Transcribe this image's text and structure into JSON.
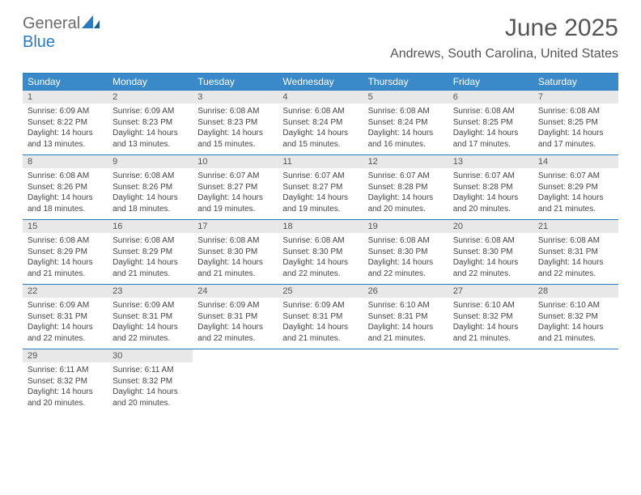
{
  "logo": {
    "text1": "General",
    "text2": "Blue"
  },
  "title": "June 2025",
  "location": "Andrews, South Carolina, United States",
  "colors": {
    "header_bg": "#3a8ac9",
    "border": "#2a7ac0",
    "daynum_bg": "#e8e8e8",
    "text_muted": "#555555",
    "body_text": "#444444"
  },
  "day_names": [
    "Sunday",
    "Monday",
    "Tuesday",
    "Wednesday",
    "Thursday",
    "Friday",
    "Saturday"
  ],
  "weeks": [
    [
      {
        "n": "1",
        "sr": "6:09 AM",
        "ss": "8:22 PM",
        "dl": "14 hours and 13 minutes."
      },
      {
        "n": "2",
        "sr": "6:09 AM",
        "ss": "8:23 PM",
        "dl": "14 hours and 13 minutes."
      },
      {
        "n": "3",
        "sr": "6:08 AM",
        "ss": "8:23 PM",
        "dl": "14 hours and 15 minutes."
      },
      {
        "n": "4",
        "sr": "6:08 AM",
        "ss": "8:24 PM",
        "dl": "14 hours and 15 minutes."
      },
      {
        "n": "5",
        "sr": "6:08 AM",
        "ss": "8:24 PM",
        "dl": "14 hours and 16 minutes."
      },
      {
        "n": "6",
        "sr": "6:08 AM",
        "ss": "8:25 PM",
        "dl": "14 hours and 17 minutes."
      },
      {
        "n": "7",
        "sr": "6:08 AM",
        "ss": "8:25 PM",
        "dl": "14 hours and 17 minutes."
      }
    ],
    [
      {
        "n": "8",
        "sr": "6:08 AM",
        "ss": "8:26 PM",
        "dl": "14 hours and 18 minutes."
      },
      {
        "n": "9",
        "sr": "6:08 AM",
        "ss": "8:26 PM",
        "dl": "14 hours and 18 minutes."
      },
      {
        "n": "10",
        "sr": "6:07 AM",
        "ss": "8:27 PM",
        "dl": "14 hours and 19 minutes."
      },
      {
        "n": "11",
        "sr": "6:07 AM",
        "ss": "8:27 PM",
        "dl": "14 hours and 19 minutes."
      },
      {
        "n": "12",
        "sr": "6:07 AM",
        "ss": "8:28 PM",
        "dl": "14 hours and 20 minutes."
      },
      {
        "n": "13",
        "sr": "6:07 AM",
        "ss": "8:28 PM",
        "dl": "14 hours and 20 minutes."
      },
      {
        "n": "14",
        "sr": "6:07 AM",
        "ss": "8:29 PM",
        "dl": "14 hours and 21 minutes."
      }
    ],
    [
      {
        "n": "15",
        "sr": "6:08 AM",
        "ss": "8:29 PM",
        "dl": "14 hours and 21 minutes."
      },
      {
        "n": "16",
        "sr": "6:08 AM",
        "ss": "8:29 PM",
        "dl": "14 hours and 21 minutes."
      },
      {
        "n": "17",
        "sr": "6:08 AM",
        "ss": "8:30 PM",
        "dl": "14 hours and 21 minutes."
      },
      {
        "n": "18",
        "sr": "6:08 AM",
        "ss": "8:30 PM",
        "dl": "14 hours and 22 minutes."
      },
      {
        "n": "19",
        "sr": "6:08 AM",
        "ss": "8:30 PM",
        "dl": "14 hours and 22 minutes."
      },
      {
        "n": "20",
        "sr": "6:08 AM",
        "ss": "8:30 PM",
        "dl": "14 hours and 22 minutes."
      },
      {
        "n": "21",
        "sr": "6:08 AM",
        "ss": "8:31 PM",
        "dl": "14 hours and 22 minutes."
      }
    ],
    [
      {
        "n": "22",
        "sr": "6:09 AM",
        "ss": "8:31 PM",
        "dl": "14 hours and 22 minutes."
      },
      {
        "n": "23",
        "sr": "6:09 AM",
        "ss": "8:31 PM",
        "dl": "14 hours and 22 minutes."
      },
      {
        "n": "24",
        "sr": "6:09 AM",
        "ss": "8:31 PM",
        "dl": "14 hours and 22 minutes."
      },
      {
        "n": "25",
        "sr": "6:09 AM",
        "ss": "8:31 PM",
        "dl": "14 hours and 21 minutes."
      },
      {
        "n": "26",
        "sr": "6:10 AM",
        "ss": "8:31 PM",
        "dl": "14 hours and 21 minutes."
      },
      {
        "n": "27",
        "sr": "6:10 AM",
        "ss": "8:32 PM",
        "dl": "14 hours and 21 minutes."
      },
      {
        "n": "28",
        "sr": "6:10 AM",
        "ss": "8:32 PM",
        "dl": "14 hours and 21 minutes."
      }
    ],
    [
      {
        "n": "29",
        "sr": "6:11 AM",
        "ss": "8:32 PM",
        "dl": "14 hours and 20 minutes."
      },
      {
        "n": "30",
        "sr": "6:11 AM",
        "ss": "8:32 PM",
        "dl": "14 hours and 20 minutes."
      },
      null,
      null,
      null,
      null,
      null
    ]
  ],
  "labels": {
    "sunrise": "Sunrise:",
    "sunset": "Sunset:",
    "daylight": "Daylight:"
  }
}
